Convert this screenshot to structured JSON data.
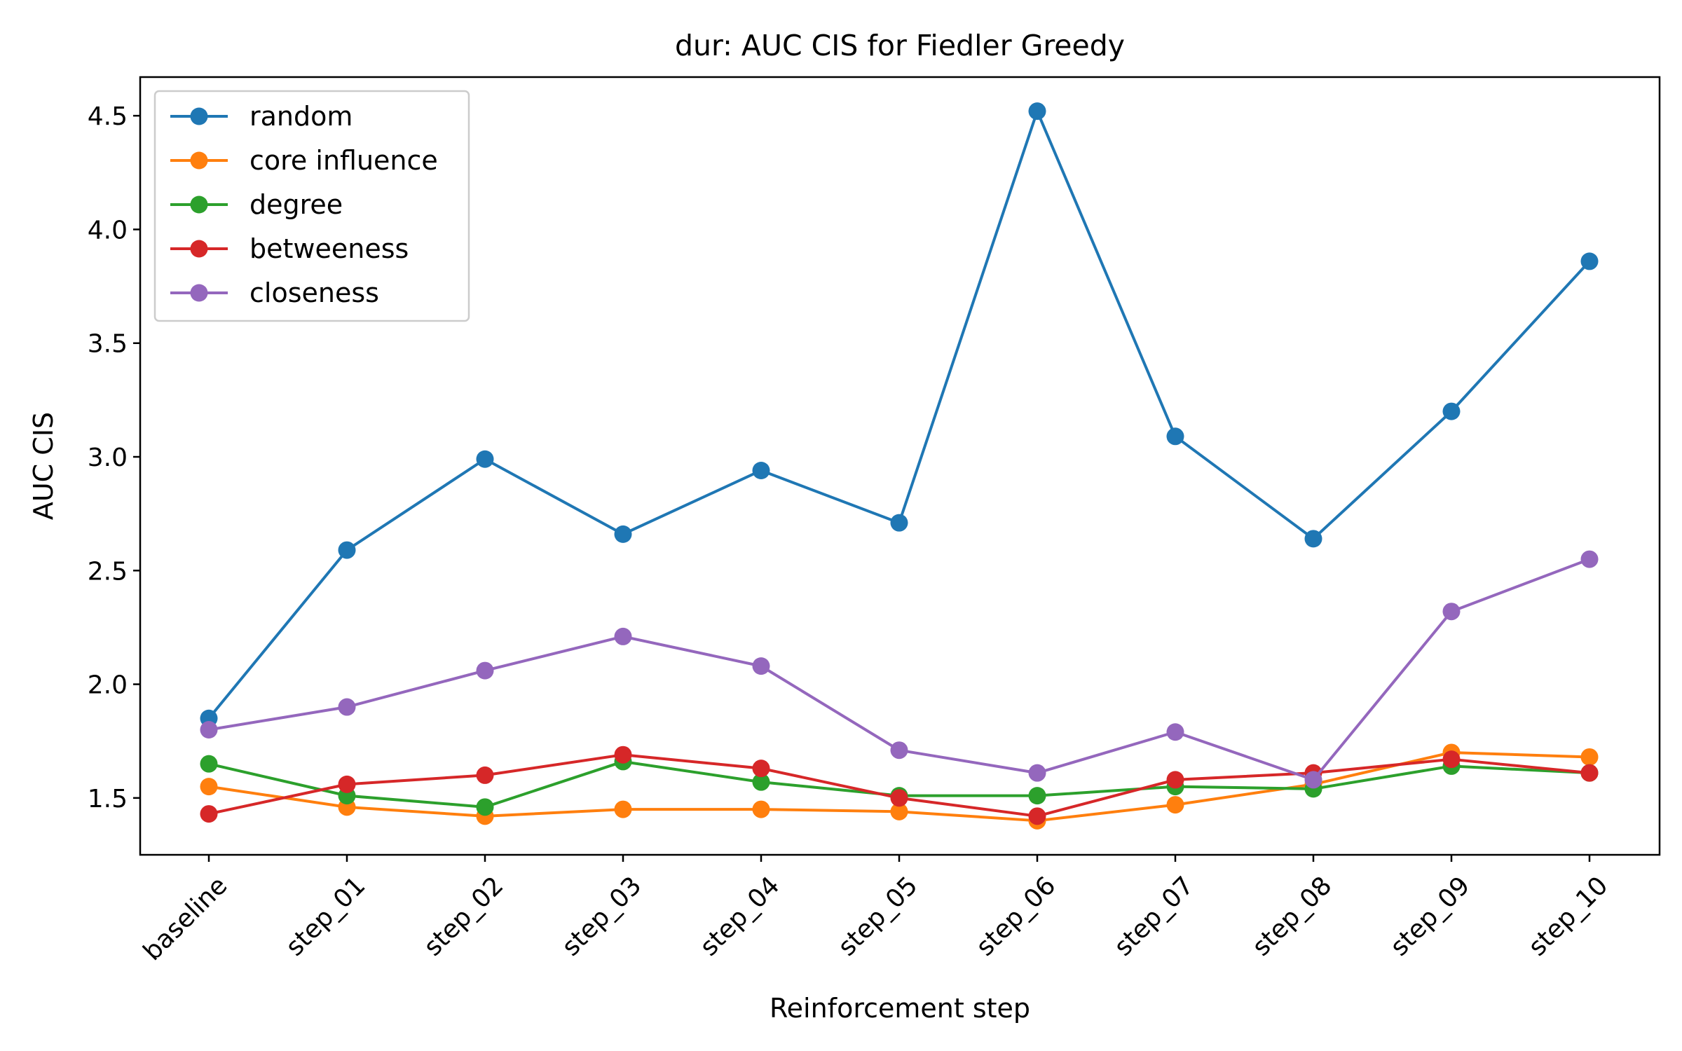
{
  "chart_data": {
    "type": "line",
    "title": "dur: AUC CIS for Fiedler Greedy",
    "xlabel": "Reinforcement step",
    "ylabel": "AUC CIS",
    "categories": [
      "baseline",
      "step_01",
      "step_02",
      "step_03",
      "step_04",
      "step_05",
      "step_06",
      "step_07",
      "step_08",
      "step_09",
      "step_10"
    ],
    "ylim": [
      1.25,
      4.67
    ],
    "yticks": [
      1.5,
      2.0,
      2.5,
      3.0,
      3.5,
      4.0,
      4.5
    ],
    "ytick_labels": [
      "1.5",
      "2.0",
      "2.5",
      "3.0",
      "3.5",
      "4.0",
      "4.5"
    ],
    "grid": false,
    "legend_position": "top-left",
    "series": [
      {
        "name": "random",
        "color": "#1f77b4",
        "values": [
          1.85,
          2.59,
          2.99,
          2.66,
          2.94,
          2.71,
          4.52,
          3.09,
          2.64,
          3.2,
          3.86
        ]
      },
      {
        "name": "core influence",
        "color": "#ff7f0e",
        "values": [
          1.55,
          1.46,
          1.42,
          1.45,
          1.45,
          1.44,
          1.4,
          1.47,
          1.56,
          1.7,
          1.68
        ]
      },
      {
        "name": "degree",
        "color": "#2ca02c",
        "values": [
          1.65,
          1.51,
          1.46,
          1.66,
          1.57,
          1.51,
          1.51,
          1.55,
          1.54,
          1.64,
          1.61
        ]
      },
      {
        "name": "betweeness",
        "color": "#d62728",
        "values": [
          1.43,
          1.56,
          1.6,
          1.69,
          1.63,
          1.5,
          1.42,
          1.58,
          1.61,
          1.67,
          1.61
        ]
      },
      {
        "name": "closeness",
        "color": "#9467bd",
        "values": [
          1.8,
          1.9,
          2.06,
          2.21,
          2.08,
          1.71,
          1.61,
          1.79,
          1.58,
          2.32,
          2.55
        ]
      }
    ]
  }
}
